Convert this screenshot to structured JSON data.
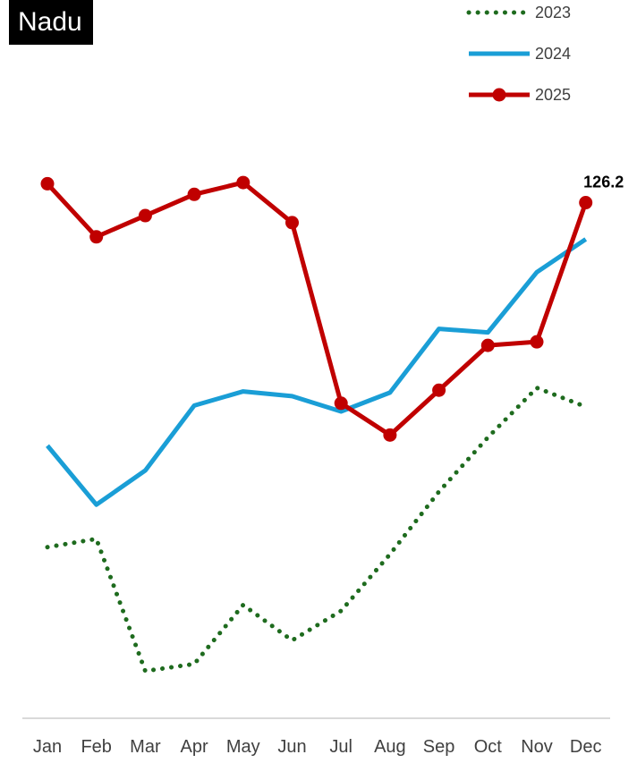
{
  "chart_data": {
    "type": "line",
    "title": "Nadu",
    "categories": [
      "Jan",
      "Feb",
      "Mar",
      "Apr",
      "May",
      "Jun",
      "Jul",
      "Aug",
      "Sep",
      "Oct",
      "Nov",
      "Dec"
    ],
    "series": [
      {
        "name": "2023",
        "color": "#1e6b1e",
        "style": "dotted",
        "markers": false,
        "values": [
          97.0,
          97.7,
          86.5,
          87.1,
          92.1,
          89.1,
          91.6,
          96.4,
          101.7,
          106.3,
          110.5,
          108.9
        ]
      },
      {
        "name": "2024",
        "color": "#1a9ed6",
        "style": "solid",
        "markers": false,
        "values": [
          105.6,
          100.6,
          103.5,
          109.0,
          110.2,
          109.8,
          108.5,
          110.1,
          115.5,
          115.2,
          120.3,
          123.1
        ]
      },
      {
        "name": "2025",
        "color": "#c00000",
        "style": "solid",
        "markers": true,
        "values": [
          127.8,
          123.3,
          125.1,
          126.9,
          127.9,
          124.5,
          109.2,
          106.5,
          110.3,
          114.1,
          114.4,
          126.2
        ]
      }
    ],
    "data_labels": [
      {
        "series": "2025",
        "index": 11,
        "text": "126.2"
      }
    ],
    "ylim": [
      85,
      132
    ],
    "grid": false,
    "legend_position": "top-right",
    "axis_color": "#d9d9d9"
  }
}
